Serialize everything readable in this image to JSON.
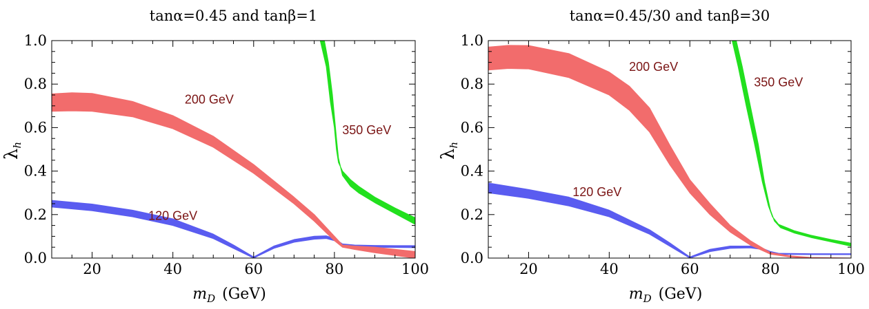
{
  "chart_data": [
    {
      "type": "area",
      "title": "tanα=0.45  and  tanβ=1",
      "xlabel_main": "m",
      "xlabel_sub": "D",
      "xlabel_units": "(GeV)",
      "ylabel_main": "λ",
      "ylabel_sub": "h",
      "xlim": [
        10,
        100
      ],
      "ylim": [
        0,
        1
      ],
      "x_ticks": [
        20,
        40,
        60,
        80,
        100
      ],
      "y_ticks": [
        0.0,
        0.2,
        0.4,
        0.6,
        0.8,
        1.0
      ],
      "x_tick_labels": [
        "20",
        "40",
        "60",
        "80",
        "100"
      ],
      "y_tick_labels": [
        "0.0",
        "0.2",
        "0.4",
        "0.6",
        "0.8",
        "1.0"
      ],
      "grid": false,
      "series": [
        {
          "name": "120 GeV",
          "color": "#5a5cf0",
          "label_at": [
            40,
            0.175
          ],
          "upper": [
            [
              10,
              0.265
            ],
            [
              20,
              0.248
            ],
            [
              30,
              0.22
            ],
            [
              40,
              0.18
            ],
            [
              50,
              0.11
            ],
            [
              55,
              0.06
            ],
            [
              60,
              0.005
            ],
            [
              65,
              0.055
            ],
            [
              70,
              0.085
            ],
            [
              75,
              0.1
            ],
            [
              78,
              0.102
            ],
            [
              80,
              0.09
            ],
            [
              82,
              0.065
            ],
            [
              85,
              0.06
            ],
            [
              90,
              0.058
            ],
            [
              95,
              0.057
            ],
            [
              100,
              0.057
            ]
          ],
          "lower": [
            [
              10,
              0.235
            ],
            [
              20,
              0.218
            ],
            [
              30,
              0.19
            ],
            [
              40,
              0.15
            ],
            [
              50,
              0.09
            ],
            [
              55,
              0.045
            ],
            [
              60,
              0.0
            ],
            [
              65,
              0.045
            ],
            [
              70,
              0.073
            ],
            [
              75,
              0.087
            ],
            [
              78,
              0.09
            ],
            [
              80,
              0.08
            ],
            [
              82,
              0.058
            ],
            [
              85,
              0.052
            ],
            [
              90,
              0.05
            ],
            [
              95,
              0.049
            ],
            [
              100,
              0.048
            ]
          ]
        },
        {
          "name": "200 GeV",
          "color": "#f26c6c",
          "label_at": [
            49,
            0.71
          ],
          "upper": [
            [
              10,
              0.755
            ],
            [
              15,
              0.76
            ],
            [
              20,
              0.757
            ],
            [
              30,
              0.72
            ],
            [
              40,
              0.655
            ],
            [
              50,
              0.56
            ],
            [
              60,
              0.43
            ],
            [
              70,
              0.28
            ],
            [
              75,
              0.2
            ],
            [
              80,
              0.1
            ],
            [
              82,
              0.06
            ],
            [
              85,
              0.055
            ],
            [
              90,
              0.05
            ],
            [
              95,
              0.04
            ],
            [
              100,
              0.03
            ]
          ],
          "lower": [
            [
              10,
              0.675
            ],
            [
              15,
              0.677
            ],
            [
              20,
              0.675
            ],
            [
              30,
              0.65
            ],
            [
              40,
              0.595
            ],
            [
              50,
              0.51
            ],
            [
              60,
              0.39
            ],
            [
              70,
              0.25
            ],
            [
              75,
              0.17
            ],
            [
              80,
              0.08
            ],
            [
              82,
              0.05
            ],
            [
              85,
              0.04
            ],
            [
              90,
              0.025
            ],
            [
              95,
              0.012
            ],
            [
              100,
              0.0
            ]
          ]
        },
        {
          "name": "350 GeV",
          "color": "#22e01e",
          "label_at": [
            88,
            0.57
          ],
          "upper": [
            [
              76.5,
              1.0
            ],
            [
              78,
              0.88
            ],
            [
              79,
              0.72
            ],
            [
              80,
              0.6
            ],
            [
              80.5,
              0.5
            ],
            [
              81,
              0.44
            ],
            [
              82,
              0.4
            ],
            [
              84,
              0.36
            ],
            [
              86,
              0.33
            ],
            [
              90,
              0.28
            ],
            [
              95,
              0.23
            ],
            [
              100,
              0.185
            ]
          ],
          "lower": [
            [
              77.5,
              1.0
            ],
            [
              78.5,
              0.9
            ],
            [
              79.5,
              0.75
            ],
            [
              80.5,
              0.55
            ],
            [
              81,
              0.46
            ],
            [
              82,
              0.38
            ],
            [
              84,
              0.33
            ],
            [
              86,
              0.3
            ],
            [
              90,
              0.255
            ],
            [
              95,
              0.205
            ],
            [
              100,
              0.155
            ]
          ]
        }
      ]
    },
    {
      "type": "area",
      "title": "tanα=0.45/30  and  tanβ=30",
      "xlabel_main": "m",
      "xlabel_sub": "D",
      "xlabel_units": "(GeV)",
      "ylabel_main": "λ",
      "ylabel_sub": "h",
      "xlim": [
        10,
        100
      ],
      "ylim": [
        0,
        1
      ],
      "x_ticks": [
        20,
        40,
        60,
        80,
        100
      ],
      "y_ticks": [
        0.0,
        0.2,
        0.4,
        0.6,
        0.8,
        1.0
      ],
      "x_tick_labels": [
        "20",
        "40",
        "60",
        "80",
        "100"
      ],
      "y_tick_labels": [
        "0.0",
        "0.2",
        "0.4",
        "0.6",
        "0.8",
        "1.0"
      ],
      "grid": false,
      "series": [
        {
          "name": "120 GeV",
          "color": "#5a5cf0",
          "label_at": [
            37,
            0.285
          ],
          "upper": [
            [
              10,
              0.345
            ],
            [
              20,
              0.315
            ],
            [
              30,
              0.28
            ],
            [
              40,
              0.22
            ],
            [
              50,
              0.13
            ],
            [
              55,
              0.07
            ],
            [
              60,
              0.005
            ],
            [
              65,
              0.04
            ],
            [
              70,
              0.055
            ],
            [
              75,
              0.055
            ],
            [
              78,
              0.045
            ],
            [
              80,
              0.03
            ],
            [
              82,
              0.022
            ],
            [
              85,
              0.021
            ],
            [
              90,
              0.02
            ],
            [
              95,
              0.02
            ],
            [
              100,
              0.02
            ]
          ],
          "lower": [
            [
              10,
              0.3
            ],
            [
              20,
              0.275
            ],
            [
              30,
              0.24
            ],
            [
              40,
              0.19
            ],
            [
              50,
              0.11
            ],
            [
              55,
              0.055
            ],
            [
              60,
              0.0
            ],
            [
              65,
              0.03
            ],
            [
              70,
              0.045
            ],
            [
              75,
              0.047
            ],
            [
              78,
              0.04
            ],
            [
              80,
              0.025
            ],
            [
              82,
              0.018
            ],
            [
              85,
              0.017
            ],
            [
              90,
              0.016
            ],
            [
              95,
              0.016
            ],
            [
              100,
              0.016
            ]
          ]
        },
        {
          "name": "200 GeV",
          "color": "#f26c6c",
          "label_at": [
            51,
            0.86
          ],
          "upper": [
            [
              10,
              0.97
            ],
            [
              15,
              0.978
            ],
            [
              20,
              0.977
            ],
            [
              30,
              0.94
            ],
            [
              40,
              0.855
            ],
            [
              45,
              0.79
            ],
            [
              50,
              0.69
            ],
            [
              55,
              0.52
            ],
            [
              60,
              0.36
            ],
            [
              65,
              0.25
            ],
            [
              70,
              0.15
            ],
            [
              75,
              0.08
            ],
            [
              80,
              0.025
            ],
            [
              85,
              0.01
            ],
            [
              90,
              0.003
            ],
            [
              100,
              0.0
            ]
          ],
          "lower": [
            [
              10,
              0.865
            ],
            [
              15,
              0.872
            ],
            [
              20,
              0.87
            ],
            [
              30,
              0.83
            ],
            [
              40,
              0.75
            ],
            [
              45,
              0.68
            ],
            [
              50,
              0.58
            ],
            [
              55,
              0.43
            ],
            [
              60,
              0.3
            ],
            [
              65,
              0.2
            ],
            [
              70,
              0.12
            ],
            [
              75,
              0.06
            ],
            [
              80,
              0.018
            ],
            [
              85,
              0.005
            ],
            [
              90,
              0.0
            ],
            [
              100,
              0.0
            ]
          ]
        },
        {
          "name": "350 GeV",
          "color": "#22e01e",
          "label_at": [
            82,
            0.79
          ],
          "upper": [
            [
              70.5,
              1.0
            ],
            [
              72,
              0.88
            ],
            [
              74,
              0.7
            ],
            [
              76,
              0.53
            ],
            [
              78,
              0.35
            ],
            [
              79.5,
              0.24
            ],
            [
              80.5,
              0.19
            ],
            [
              82,
              0.155
            ],
            [
              86,
              0.125
            ],
            [
              90,
              0.105
            ],
            [
              95,
              0.085
            ],
            [
              100,
              0.068
            ]
          ],
          "lower": [
            [
              71.5,
              1.0
            ],
            [
              73,
              0.88
            ],
            [
              75,
              0.7
            ],
            [
              77,
              0.52
            ],
            [
              78.5,
              0.35
            ],
            [
              80,
              0.22
            ],
            [
              81,
              0.17
            ],
            [
              82.5,
              0.14
            ],
            [
              86,
              0.115
            ],
            [
              90,
              0.095
            ],
            [
              95,
              0.075
            ],
            [
              100,
              0.055
            ]
          ]
        }
      ]
    }
  ]
}
